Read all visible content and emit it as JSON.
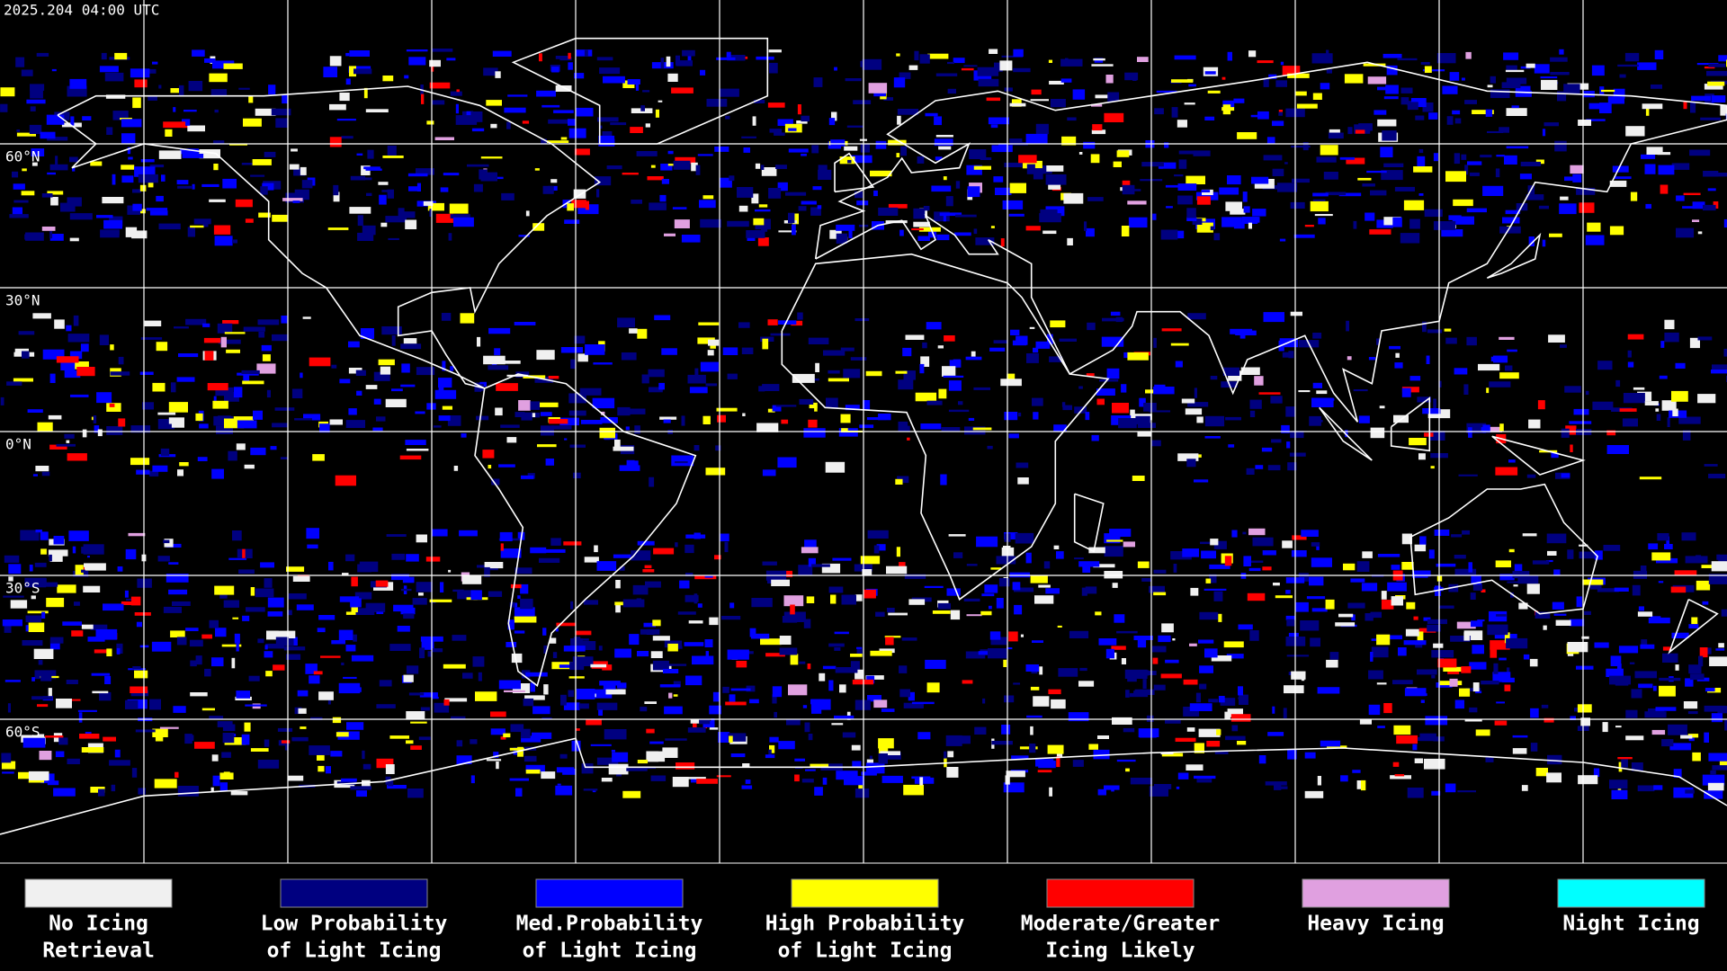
{
  "header": {
    "timestamp": "2025.204 04:00 UTC"
  },
  "map": {
    "latitude_labels": [
      "60°N",
      "30°N",
      "0°N",
      "30°S",
      "60°S"
    ]
  },
  "legend": [
    {
      "label": [
        "No Icing",
        "Retrieval"
      ],
      "color": "#f0f0f0"
    },
    {
      "label": [
        "Low Probability",
        "of Light Icing"
      ],
      "color": "#000080"
    },
    {
      "label": [
        "Med.Probability",
        "of Light Icing"
      ],
      "color": "#0000ff"
    },
    {
      "label": [
        "High Probability",
        "of Light Icing"
      ],
      "color": "#ffff00"
    },
    {
      "label": [
        "Moderate/Greater",
        "Icing Likely"
      ],
      "color": "#ff0000"
    },
    {
      "label": [
        "Heavy Icing"
      ],
      "color": "#e0a0e0"
    },
    {
      "label": [
        "Night Icing"
      ],
      "color": "#00ffff"
    }
  ]
}
